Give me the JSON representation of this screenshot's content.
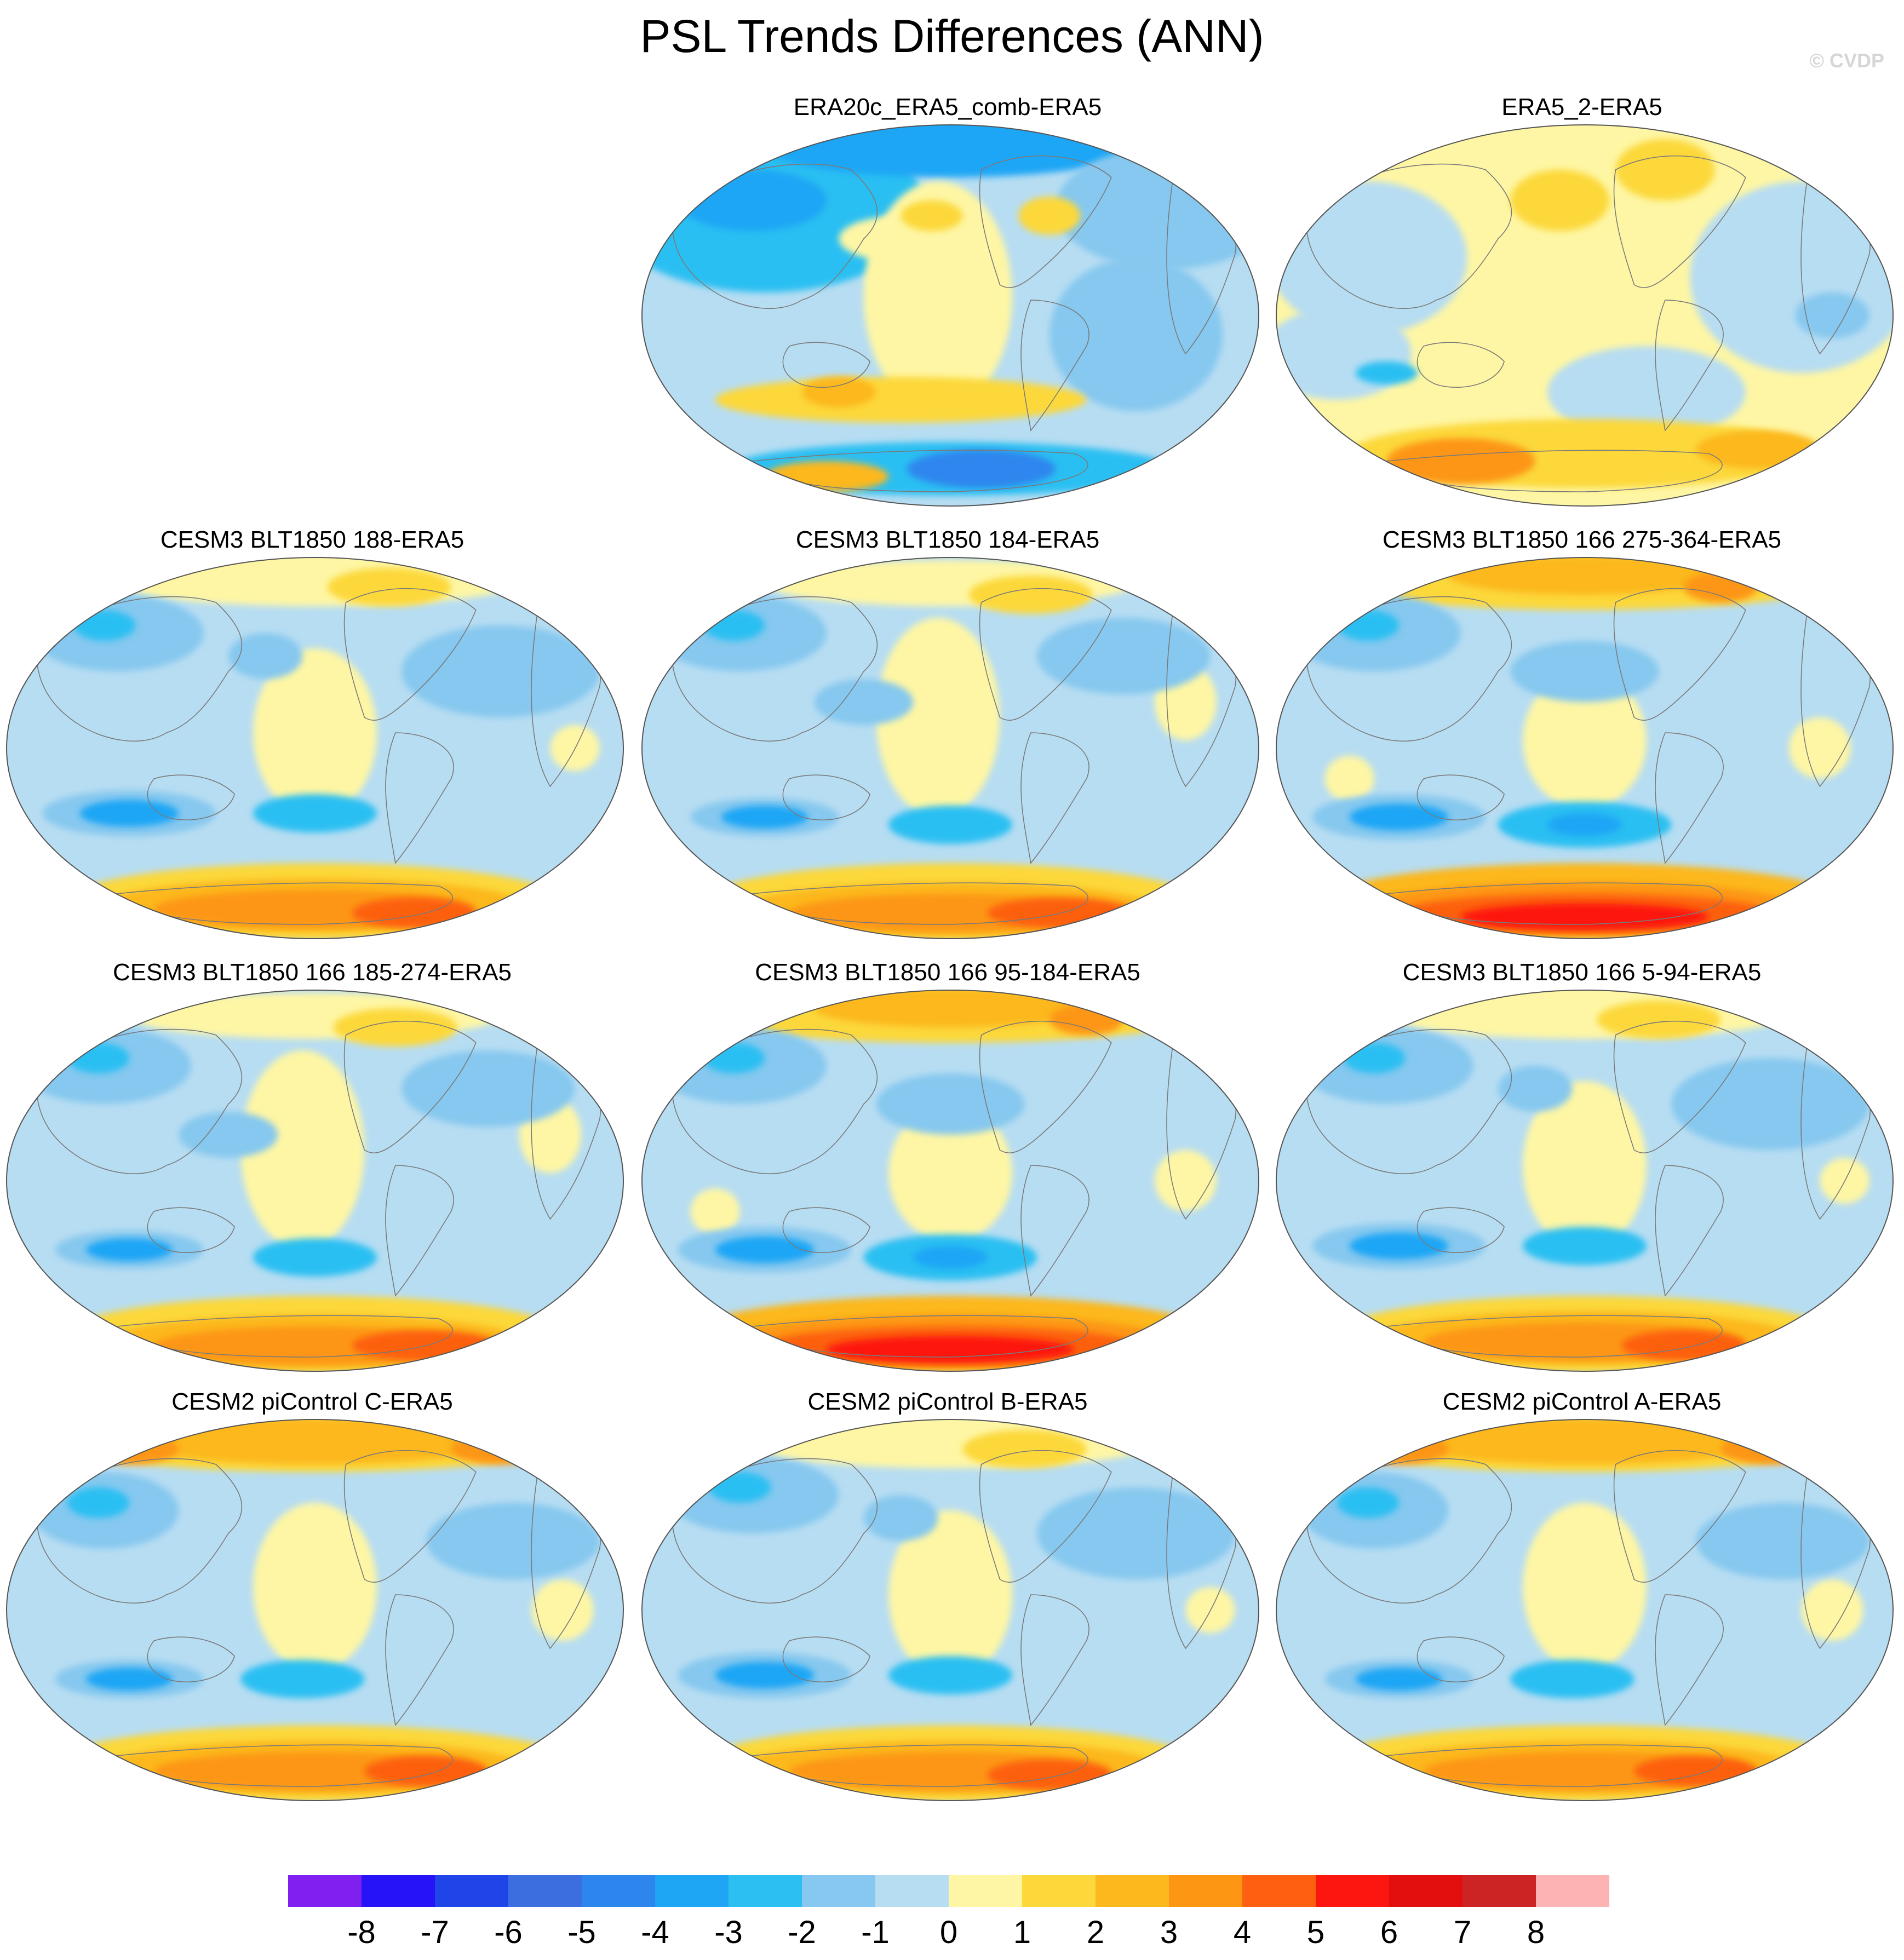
{
  "title": "PSL Trends Differences (ANN)",
  "copyright": "© CVDP",
  "colors": {
    "levels": [
      "#7f1ff0",
      "#2613f8",
      "#1f45e8",
      "#3c6ee0",
      "#2d86ee",
      "#1ea6f5",
      "#2bbff2",
      "#86c8ef",
      "#b7ddf2",
      "#fef6a4",
      "#fcd83b",
      "#fcb81c",
      "#fd9612",
      "#fd6010",
      "#fd1510",
      "#e20f0e",
      "#cc2424",
      "#fdb3b4"
    ],
    "coast": "#7a7a7a"
  },
  "colorbar": {
    "labels": [
      "-8",
      "-7",
      "-6",
      "-5",
      "-4",
      "-3",
      "-2",
      "-1",
      "0",
      "1",
      "2",
      "3",
      "4",
      "5",
      "6",
      "7",
      "8"
    ]
  },
  "panels": [
    {
      "title": "ERA20c_ERA5_comb-ERA5",
      "pattern": "era20c"
    },
    {
      "title": "ERA5_2-ERA5",
      "pattern": "era5"
    },
    {
      "title": "CESM3 BLT1850 188-ERA5",
      "pattern": "model_a"
    },
    {
      "title": "CESM3 BLT1850 184-ERA5",
      "pattern": "model_b"
    },
    {
      "title": "CESM3 BLT1850 166 275-364-ERA5",
      "pattern": "model_c"
    },
    {
      "title": "CESM3 BLT1850 166 185-274-ERA5",
      "pattern": "model_b"
    },
    {
      "title": "CESM3 BLT1850 166 95-184-ERA5",
      "pattern": "model_c"
    },
    {
      "title": "CESM3 BLT1850 166 5-94-ERA5",
      "pattern": "model_a"
    },
    {
      "title": "CESM2 piControl C-ERA5",
      "pattern": "pic"
    },
    {
      "title": "CESM2 piControl B-ERA5",
      "pattern": "model_a"
    },
    {
      "title": "CESM2 piControl A-ERA5",
      "pattern": "pic"
    }
  ]
}
